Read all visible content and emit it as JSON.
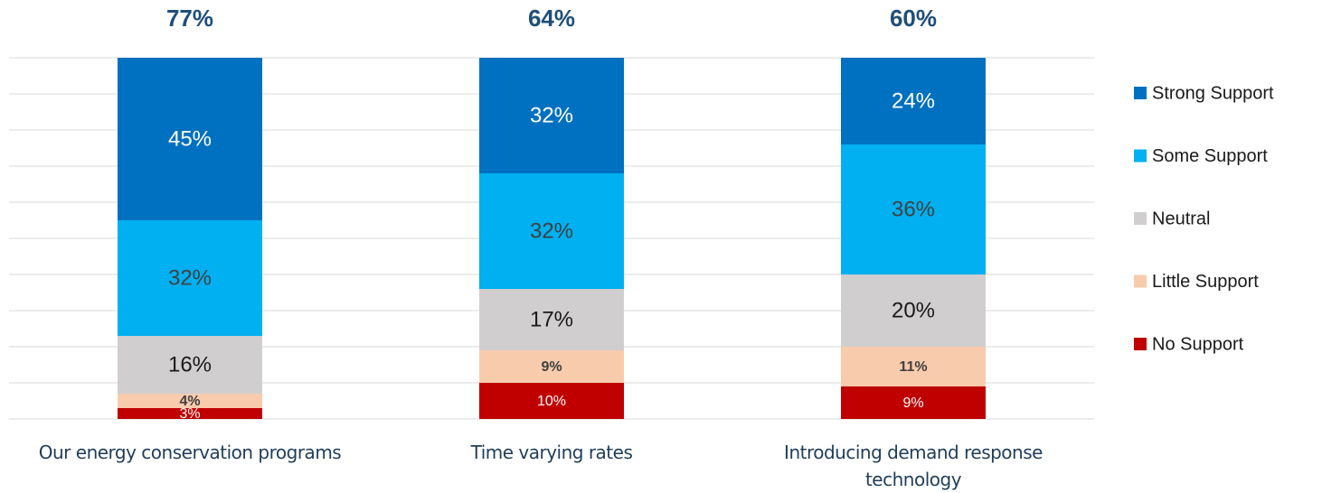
{
  "chart_data": {
    "type": "stacked_bar",
    "annotations": [
      "77%",
      "64%",
      "60%"
    ],
    "categories": [
      "Our energy conservation programs",
      "Time varying rates",
      "Introducing demand response technology"
    ],
    "series": [
      {
        "name": "No Support",
        "color": "#c00000",
        "values": [
          3,
          10,
          9
        ],
        "value_labels": [
          "3%",
          "10%",
          "9%"
        ]
      },
      {
        "name": "Little Support",
        "color": "#f8cbad",
        "values": [
          4,
          9,
          11
        ],
        "value_labels": [
          "4%",
          "9%",
          "11%"
        ]
      },
      {
        "name": "Neutral",
        "color": "#d0cece",
        "values": [
          16,
          17,
          20
        ],
        "value_labels": [
          "16%",
          "17%",
          "20%"
        ]
      },
      {
        "name": "Some Support",
        "color": "#00b0f0",
        "values": [
          32,
          32,
          36
        ],
        "value_labels": [
          "32%",
          "32%",
          "36%"
        ]
      },
      {
        "name": "Strong Support",
        "color": "#0070c0",
        "values": [
          45,
          32,
          24
        ],
        "value_labels": [
          "45%",
          "32%",
          "24%"
        ]
      }
    ],
    "ylim": [
      0,
      100
    ],
    "yticks": [
      0,
      10,
      20,
      30,
      40,
      50,
      60,
      70,
      80,
      90,
      100
    ],
    "grid": true,
    "legend": "right"
  }
}
